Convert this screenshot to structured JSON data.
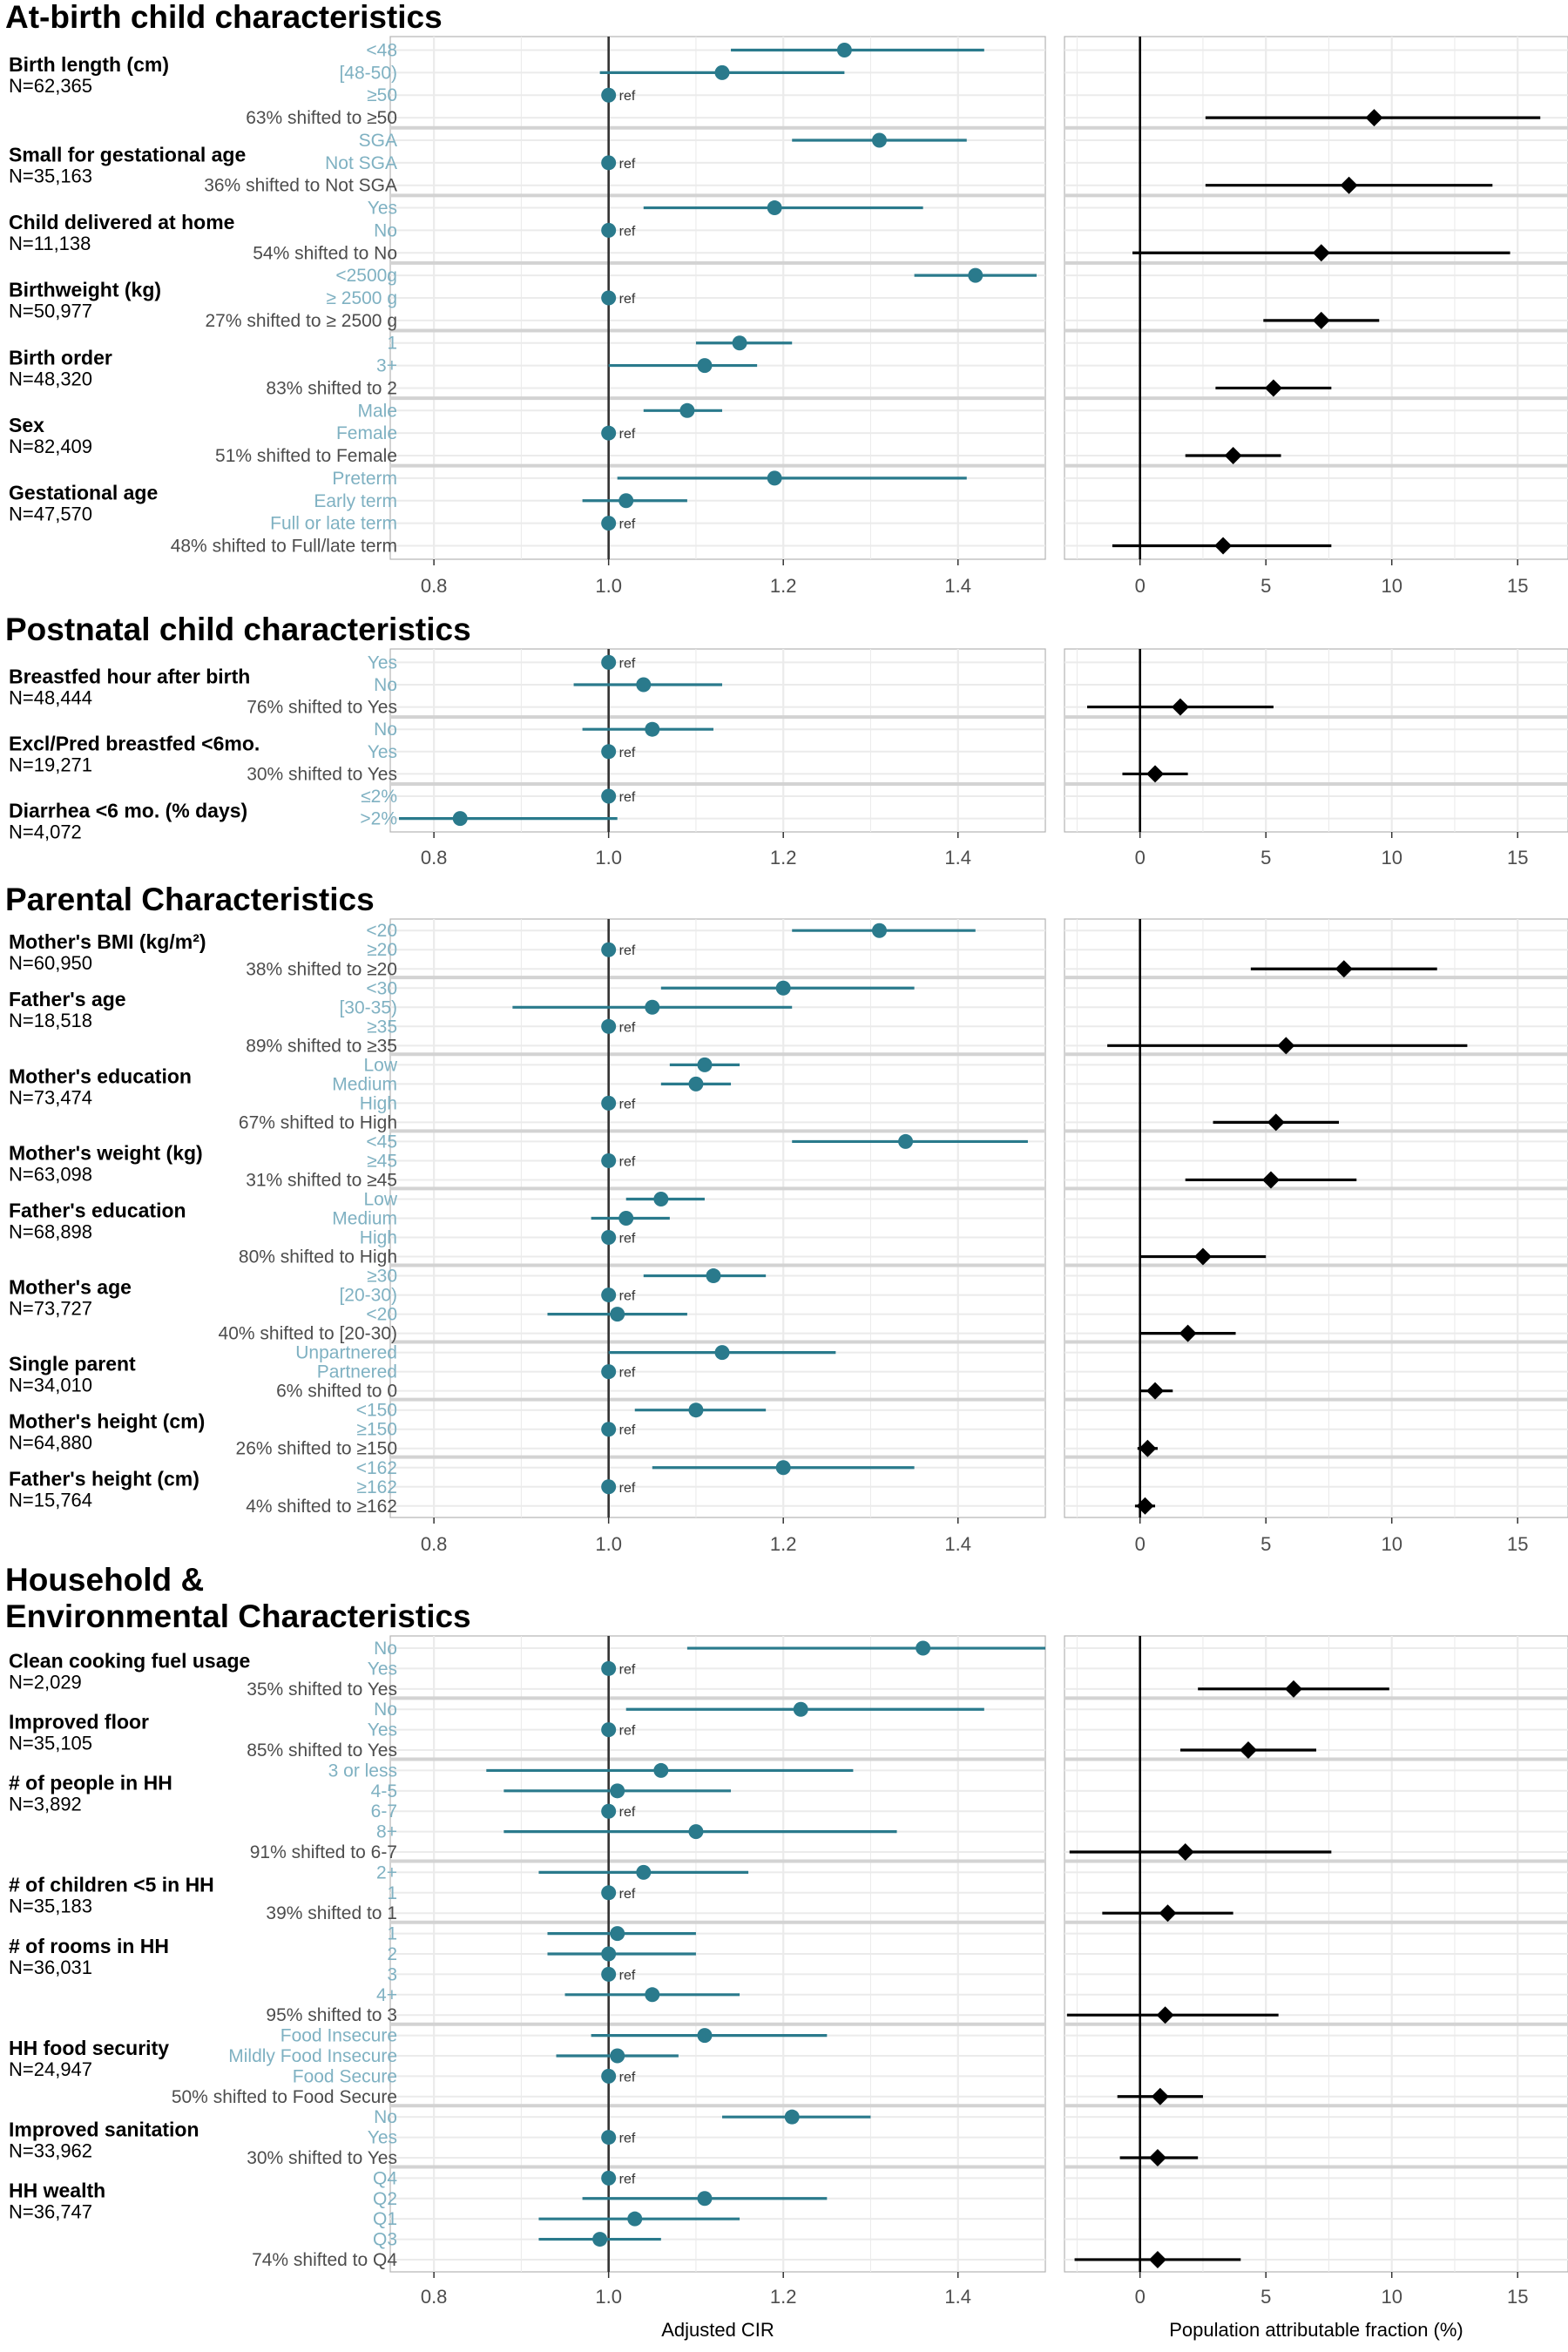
{
  "chart_data": {
    "type": "forest",
    "left_xlabel": "Adjusted CIR",
    "right_xlabel": "Population attributable fraction (%)",
    "left_ticks": [
      0.8,
      1.0,
      1.2,
      1.4
    ],
    "left_tick_labels": [
      "0.8",
      "1.0",
      "1.2",
      "1.4"
    ],
    "left_xlim": [
      0.75,
      1.5
    ],
    "left_ref_line": 1.0,
    "right_ticks": [
      0,
      5,
      10,
      15
    ],
    "right_tick_labels": [
      "0",
      "5",
      "10",
      "15"
    ],
    "right_xlim": [
      -3,
      17
    ],
    "right_ref_line": 0,
    "ref_label": "ref",
    "colors": {
      "cir": "#2a7a8c",
      "paf": "#000000",
      "level_text": "#7fb1c2",
      "panel_border": "#b3b3b3",
      "grid": "#ebebeb"
    },
    "sections": [
      {
        "title": "At-birth child characteristics",
        "variables": [
          {
            "name": "Birth length (cm)",
            "n": "N=62,365",
            "shift": "63% shifted to ≥50",
            "paf": {
              "est": 9.3,
              "lo": 2.6,
              "hi": 15.9
            },
            "levels": [
              {
                "label": "<48",
                "est": 1.27,
                "lo": 1.14,
                "hi": 1.43
              },
              {
                "label": "[48-50)",
                "est": 1.13,
                "lo": 0.99,
                "hi": 1.27
              },
              {
                "label": "≥50",
                "est": 1.0,
                "ref": true
              }
            ]
          },
          {
            "name": "Small for gestational age",
            "n": "N=35,163",
            "shift": "36% shifted to Not SGA",
            "paf": {
              "est": 8.3,
              "lo": 2.6,
              "hi": 14.0
            },
            "levels": [
              {
                "label": "SGA",
                "est": 1.31,
                "lo": 1.21,
                "hi": 1.41
              },
              {
                "label": "Not SGA",
                "est": 1.0,
                "ref": true
              }
            ]
          },
          {
            "name": "Child delivered at home",
            "n": "N=11,138",
            "shift": "54% shifted to No",
            "paf": {
              "est": 7.2,
              "lo": -0.3,
              "hi": 14.7
            },
            "levels": [
              {
                "label": "Yes",
                "est": 1.19,
                "lo": 1.04,
                "hi": 1.36
              },
              {
                "label": "No",
                "est": 1.0,
                "ref": true
              }
            ]
          },
          {
            "name": "Birthweight (kg)",
            "n": "N=50,977",
            "shift": "27% shifted to ≥ 2500 g",
            "paf": {
              "est": 7.2,
              "lo": 4.9,
              "hi": 9.5
            },
            "levels": [
              {
                "label": "<2500g",
                "est": 1.42,
                "lo": 1.35,
                "hi": 1.49
              },
              {
                "label": "≥ 2500 g",
                "est": 1.0,
                "ref": true
              }
            ]
          },
          {
            "name": "Birth order",
            "n": "N=48,320",
            "shift": "83% shifted to 2",
            "paf": {
              "est": 5.3,
              "lo": 3.0,
              "hi": 7.6
            },
            "levels": [
              {
                "label": "1",
                "est": 1.15,
                "lo": 1.1,
                "hi": 1.21
              },
              {
                "label": "3+",
                "est": 1.11,
                "lo": 1.0,
                "hi": 1.17
              }
            ]
          },
          {
            "name": "Sex",
            "n": "N=82,409",
            "shift": "51% shifted to Female",
            "paf": {
              "est": 3.7,
              "lo": 1.8,
              "hi": 5.6
            },
            "levels": [
              {
                "label": "Male",
                "est": 1.09,
                "lo": 1.04,
                "hi": 1.13
              },
              {
                "label": "Female",
                "est": 1.0,
                "ref": true
              }
            ]
          },
          {
            "name": "Gestational age",
            "n": "N=47,570",
            "shift": "48% shifted to Full/late term",
            "paf": {
              "est": 3.3,
              "lo": -1.1,
              "hi": 7.6
            },
            "levels": [
              {
                "label": "Preterm",
                "est": 1.19,
                "lo": 1.01,
                "hi": 1.41
              },
              {
                "label": "Early term",
                "est": 1.02,
                "lo": 0.97,
                "hi": 1.09
              },
              {
                "label": "Full or late term",
                "est": 1.0,
                "ref": true
              }
            ]
          }
        ]
      },
      {
        "title": "Postnatal child characteristics",
        "variables": [
          {
            "name": "Breastfed hour after birth",
            "n": "N=48,444",
            "shift": "76% shifted to Yes",
            "paf": {
              "est": 1.6,
              "lo": -2.1,
              "hi": 5.3
            },
            "levels": [
              {
                "label": "Yes",
                "est": 1.0,
                "ref": true
              },
              {
                "label": "No",
                "est": 1.04,
                "lo": 0.96,
                "hi": 1.13
              }
            ]
          },
          {
            "name": "Excl/Pred breastfed <6mo.",
            "n": "N=19,271",
            "shift": "30% shifted to Yes",
            "paf": {
              "est": 0.6,
              "lo": -0.7,
              "hi": 1.9
            },
            "levels": [
              {
                "label": "No",
                "est": 1.05,
                "lo": 0.97,
                "hi": 1.12
              },
              {
                "label": "Yes",
                "est": 1.0,
                "ref": true
              }
            ]
          },
          {
            "name": "Diarrhea <6 mo. (% days)",
            "n": "N=4,072",
            "shift": "",
            "levels": [
              {
                "label": "≤2%",
                "est": 1.0,
                "ref": true
              },
              {
                "label": ">2%",
                "est": 0.83,
                "lo": 0.76,
                "hi": 1.01
              }
            ]
          }
        ]
      },
      {
        "title": "Parental Characteristics",
        "variables": [
          {
            "name": "Mother's BMI (kg/m²)",
            "n": "N=60,950",
            "shift": "38% shifted to ≥20",
            "paf": {
              "est": 8.1,
              "lo": 4.4,
              "hi": 11.8
            },
            "levels": [
              {
                "label": "<20",
                "est": 1.31,
                "lo": 1.21,
                "hi": 1.42
              },
              {
                "label": "≥20",
                "est": 1.0,
                "ref": true
              }
            ]
          },
          {
            "name": "Father's age",
            "n": "N=18,518",
            "shift": "89% shifted to ≥35",
            "paf": {
              "est": 5.8,
              "lo": -1.3,
              "hi": 13.0
            },
            "levels": [
              {
                "label": "<30",
                "est": 1.2,
                "lo": 1.06,
                "hi": 1.35
              },
              {
                "label": "[30-35)",
                "est": 1.05,
                "lo": 0.89,
                "hi": 1.21
              },
              {
                "label": "≥35",
                "est": 1.0,
                "ref": true
              }
            ]
          },
          {
            "name": "Mother's education",
            "n": "N=73,474",
            "shift": "67% shifted to High",
            "paf": {
              "est": 5.4,
              "lo": 2.9,
              "hi": 7.9
            },
            "levels": [
              {
                "label": "Low",
                "est": 1.11,
                "lo": 1.07,
                "hi": 1.15
              },
              {
                "label": "Medium",
                "est": 1.1,
                "lo": 1.06,
                "hi": 1.14
              },
              {
                "label": "High",
                "est": 1.0,
                "ref": true
              }
            ]
          },
          {
            "name": "Mother's weight (kg)",
            "n": "N=63,098",
            "shift": "31% shifted to ≥45",
            "paf": {
              "est": 5.2,
              "lo": 1.8,
              "hi": 8.6
            },
            "levels": [
              {
                "label": "<45",
                "est": 1.34,
                "lo": 1.21,
                "hi": 1.48
              },
              {
                "label": "≥45",
                "est": 1.0,
                "ref": true
              }
            ]
          },
          {
            "name": "Father's education",
            "n": "N=68,898",
            "shift": "80% shifted to High",
            "paf": {
              "est": 2.5,
              "lo": 0.0,
              "hi": 5.0
            },
            "levels": [
              {
                "label": "Low",
                "est": 1.06,
                "lo": 1.02,
                "hi": 1.11
              },
              {
                "label": "Medium",
                "est": 1.02,
                "lo": 0.98,
                "hi": 1.07
              },
              {
                "label": "High",
                "est": 1.0,
                "ref": true
              }
            ]
          },
          {
            "name": "Mother's age",
            "n": "N=73,727",
            "shift": "40% shifted to [20-30)",
            "paf": {
              "est": 1.9,
              "lo": 0.0,
              "hi": 3.8
            },
            "levels": [
              {
                "label": "≥30",
                "est": 1.12,
                "lo": 1.04,
                "hi": 1.18
              },
              {
                "label": "[20-30)",
                "est": 1.0,
                "ref": true
              },
              {
                "label": "<20",
                "est": 1.01,
                "lo": 0.93,
                "hi": 1.09
              }
            ]
          },
          {
            "name": "Single parent",
            "n": "N=34,010",
            "shift": "6% shifted to 0",
            "paf": {
              "est": 0.6,
              "lo": 0.0,
              "hi": 1.3
            },
            "levels": [
              {
                "label": "Unpartnered",
                "est": 1.13,
                "lo": 1.0,
                "hi": 1.26
              },
              {
                "label": "Partnered",
                "est": 1.0,
                "ref": true
              }
            ]
          },
          {
            "name": "Mother's height (cm)",
            "n": "N=64,880",
            "shift": "26% shifted to ≥150",
            "paf": {
              "est": 0.3,
              "lo": -0.1,
              "hi": 0.7
            },
            "levels": [
              {
                "label": "<150",
                "est": 1.1,
                "lo": 1.03,
                "hi": 1.18
              },
              {
                "label": "≥150",
                "est": 1.0,
                "ref": true
              }
            ]
          },
          {
            "name": "Father's height (cm)",
            "n": "N=15,764",
            "shift": "4% shifted to ≥162",
            "paf": {
              "est": 0.2,
              "lo": -0.2,
              "hi": 0.6
            },
            "levels": [
              {
                "label": "<162",
                "est": 1.2,
                "lo": 1.05,
                "hi": 1.35
              },
              {
                "label": "≥162",
                "est": 1.0,
                "ref": true
              }
            ]
          }
        ]
      },
      {
        "title": "Household & Environmental Characteristics",
        "title_lines": [
          "Household &",
          "Environmental Characteristics"
        ],
        "variables": [
          {
            "name": "Clean cooking fuel usage",
            "n": "N=2,029",
            "shift": "35% shifted to Yes",
            "paf": {
              "est": 6.1,
              "lo": 2.3,
              "hi": 9.9
            },
            "levels": [
              {
                "label": "No",
                "est": 1.36,
                "lo": 1.09,
                "hi": 1.57
              },
              {
                "label": "Yes",
                "est": 1.0,
                "ref": true
              }
            ]
          },
          {
            "name": "Improved floor",
            "n": "N=35,105",
            "shift": "85% shifted to Yes",
            "paf": {
              "est": 4.3,
              "lo": 1.6,
              "hi": 7.0
            },
            "levels": [
              {
                "label": "No",
                "est": 1.22,
                "lo": 1.02,
                "hi": 1.43
              },
              {
                "label": "Yes",
                "est": 1.0,
                "ref": true
              }
            ]
          },
          {
            "name": "# of people in HH",
            "n": "N=3,892",
            "shift": "91% shifted to 6-7",
            "paf": {
              "est": 1.8,
              "lo": -2.8,
              "hi": 7.6
            },
            "levels": [
              {
                "label": "3 or less",
                "est": 1.06,
                "lo": 0.86,
                "hi": 1.28
              },
              {
                "label": "4-5",
                "est": 1.01,
                "lo": 0.88,
                "hi": 1.14
              },
              {
                "label": "6-7",
                "est": 1.0,
                "ref": true
              },
              {
                "label": "8+",
                "est": 1.1,
                "lo": 0.88,
                "hi": 1.33
              }
            ]
          },
          {
            "name": "# of children <5 in HH",
            "n": "N=35,183",
            "shift": "39% shifted to 1",
            "paf": {
              "est": 1.1,
              "lo": -1.5,
              "hi": 3.7
            },
            "levels": [
              {
                "label": "2+",
                "est": 1.04,
                "lo": 0.92,
                "hi": 1.16
              },
              {
                "label": "1",
                "est": 1.0,
                "ref": true
              }
            ]
          },
          {
            "name": "# of rooms in HH",
            "n": "N=36,031",
            "shift": "95% shifted to 3",
            "paf": {
              "est": 1.0,
              "lo": -2.9,
              "hi": 5.5
            },
            "levels": [
              {
                "label": "1",
                "est": 1.01,
                "lo": 0.93,
                "hi": 1.1
              },
              {
                "label": "2",
                "est": 1.0,
                "lo": 0.93,
                "hi": 1.1
              },
              {
                "label": "3",
                "est": 1.0,
                "ref": true
              },
              {
                "label": "4+",
                "est": 1.05,
                "lo": 0.95,
                "hi": 1.15
              }
            ]
          },
          {
            "name": "HH food security",
            "n": "N=24,947",
            "shift": "50% shifted to Food Secure",
            "paf": {
              "est": 0.8,
              "lo": -0.9,
              "hi": 2.5
            },
            "levels": [
              {
                "label": "Food Insecure",
                "est": 1.11,
                "lo": 0.98,
                "hi": 1.25
              },
              {
                "label": "Mildly Food Insecure",
                "est": 1.01,
                "lo": 0.94,
                "hi": 1.08
              },
              {
                "label": "Food Secure",
                "est": 1.0,
                "ref": true
              }
            ]
          },
          {
            "name": "Improved sanitation",
            "n": "N=33,962",
            "shift": "30% shifted to Yes",
            "paf": {
              "est": 0.7,
              "lo": -0.8,
              "hi": 2.3
            },
            "levels": [
              {
                "label": "No",
                "est": 1.21,
                "lo": 1.13,
                "hi": 1.3
              },
              {
                "label": "Yes",
                "est": 1.0,
                "ref": true
              }
            ]
          },
          {
            "name": "HH wealth",
            "n": "N=36,747",
            "shift": "74% shifted to Q4",
            "paf": {
              "est": 0.7,
              "lo": -2.6,
              "hi": 4.0
            },
            "levels": [
              {
                "label": "Q4",
                "est": 1.0,
                "ref": true
              },
              {
                "label": "Q2",
                "est": 1.11,
                "lo": 0.97,
                "hi": 1.25
              },
              {
                "label": "Q1",
                "est": 1.03,
                "lo": 0.92,
                "hi": 1.15
              },
              {
                "label": "Q3",
                "est": 0.99,
                "lo": 0.92,
                "hi": 1.06
              }
            ]
          }
        ]
      }
    ]
  }
}
